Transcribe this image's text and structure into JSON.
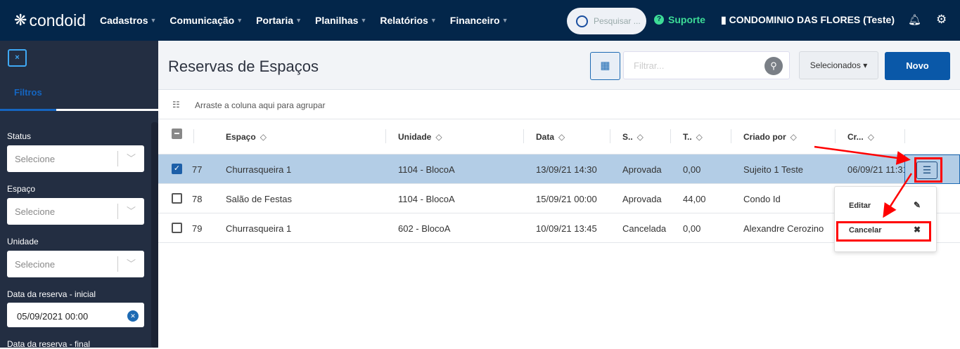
{
  "header": {
    "logo": "condoid",
    "nav": [
      "Cadastros",
      "Comunicação",
      "Portaria",
      "Planilhas",
      "Relatórios",
      "Financeiro"
    ],
    "search_placeholder": "Pesquisar ...",
    "support": "Suporte",
    "condo": "CONDOMINIO DAS FLORES (Teste)"
  },
  "sidebar": {
    "close": "×",
    "tab": "Filtros",
    "filters": [
      {
        "label": "Status",
        "value": "Selecione"
      },
      {
        "label": "Espaço",
        "value": "Selecione"
      },
      {
        "label": "Unidade",
        "value": "Selecione"
      }
    ],
    "date_start_label": "Data da reserva - inicial",
    "date_start_value": "05/09/2021 00:00",
    "date_end_label": "Data da reserva - final"
  },
  "main": {
    "title": "Reservas de Espaços",
    "filter_placeholder": "Filtrar...",
    "selected_label": "Selecionados",
    "new_label": "Novo",
    "group_hint": "Arraste a coluna aqui para agrupar",
    "columns": [
      "Espaço",
      "Unidade",
      "Data",
      "S..",
      "T..",
      "Criado por",
      "Cr..."
    ],
    "rows": [
      {
        "id": "77",
        "espaco": "Churrasqueira 1",
        "unidade": "1104 - BlocoA",
        "data": "13/09/21 14:30",
        "status": "Aprovada",
        "total": "0,00",
        "criado": "Sujeito 1 Teste",
        "cr": "06/09/21 11:31",
        "checked": true
      },
      {
        "id": "78",
        "espaco": "Salão de Festas",
        "unidade": "1104 - BlocoA",
        "data": "15/09/21 00:00",
        "status": "Aprovada",
        "total": "44,00",
        "criado": "Condo Id",
        "cr": "",
        "checked": false
      },
      {
        "id": "79",
        "espaco": "Churrasqueira 1",
        "unidade": "602 - BlocoA",
        "data": "10/09/21 13:45",
        "status": "Cancelada",
        "total": "0,00",
        "criado": "Alexandre Cerozino",
        "cr": "",
        "checked": false
      }
    ],
    "menu": {
      "edit": "Editar",
      "cancel": "Cancelar"
    }
  },
  "colors": {
    "header": "#03264a",
    "sidebar": "#232e42",
    "accent": "#0a58a8",
    "selected_row": "#b3cde6",
    "annotation": "#ff0000"
  }
}
